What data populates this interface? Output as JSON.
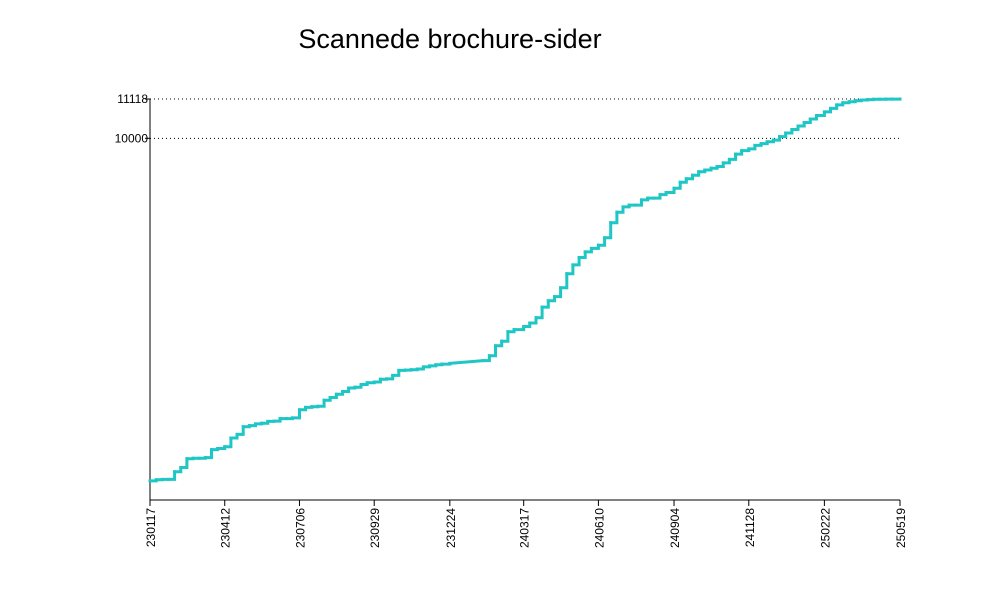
{
  "chart_data": {
    "type": "line",
    "title": "Scannede brochure-sider",
    "xlabel": "",
    "ylabel": "",
    "x_tick_labels": [
      "230117",
      "230412",
      "230706",
      "230929",
      "231224",
      "240317",
      "240610",
      "240904",
      "241128",
      "250222",
      "250519"
    ],
    "y_tick_labels": [
      "11118",
      "10000"
    ],
    "y_ticks": [
      11118,
      10000
    ],
    "ylim": [
      0,
      11118
    ],
    "grid": "dotted horizontal lines at the labeled y ticks",
    "legend": "none",
    "line_color": "#1fc6c6",
    "series": [
      {
        "x": [
          "230117",
          "230124",
          "230131",
          "230207",
          "230214",
          "230221",
          "230228",
          "230307",
          "230314",
          "230321",
          "230328",
          "230404",
          "230412",
          "230419",
          "230426",
          "230503",
          "230510",
          "230517",
          "230524",
          "230531",
          "230607",
          "230614",
          "230621",
          "230628",
          "230706",
          "230713",
          "230720",
          "230727",
          "230803",
          "230810",
          "230817",
          "230824",
          "230831",
          "230907",
          "230914",
          "230921",
          "230929",
          "231006",
          "231013",
          "231020",
          "231027",
          "231103",
          "231110",
          "231117",
          "231124",
          "231201",
          "231208",
          "231215",
          "231224",
          "240131",
          "240207",
          "240214",
          "240221",
          "240228",
          "240306",
          "240317",
          "240324",
          "240331",
          "240407",
          "240414",
          "240421",
          "240428",
          "240505",
          "240512",
          "240519",
          "240526",
          "240602",
          "240610",
          "240617",
          "240624",
          "240701",
          "240708",
          "240715",
          "240722",
          "240729",
          "240805",
          "240812",
          "240819",
          "240826",
          "240904",
          "240911",
          "240918",
          "240925",
          "241002",
          "241009",
          "241016",
          "241023",
          "241030",
          "241106",
          "241113",
          "241120",
          "241128",
          "241205",
          "241212",
          "241219",
          "241226",
          "250102",
          "250109",
          "250116",
          "250123",
          "250130",
          "250206",
          "250213",
          "250222",
          "250301",
          "250308",
          "250315",
          "250322",
          "250329",
          "250405",
          "250412",
          "250419",
          "250426",
          "250503",
          "250510",
          "250519"
        ],
        "y": [
          260,
          290,
          300,
          300,
          520,
          640,
          890,
          900,
          900,
          920,
          1150,
          1180,
          1230,
          1480,
          1580,
          1800,
          1830,
          1880,
          1900,
          1950,
          1960,
          2030,
          2030,
          2050,
          2280,
          2350,
          2370,
          2380,
          2550,
          2630,
          2720,
          2800,
          2900,
          2920,
          3000,
          3050,
          3070,
          3150,
          3160,
          3260,
          3400,
          3410,
          3420,
          3440,
          3500,
          3530,
          3560,
          3580,
          3600,
          3680,
          3820,
          4100,
          4230,
          4500,
          4560,
          4650,
          4750,
          4900,
          5200,
          5380,
          5500,
          5750,
          6150,
          6400,
          6610,
          6770,
          6870,
          6960,
          7170,
          7600,
          7900,
          8050,
          8100,
          8100,
          8250,
          8300,
          8300,
          8400,
          8460,
          8580,
          8750,
          8850,
          8950,
          9050,
          9100,
          9150,
          9200,
          9300,
          9400,
          9550,
          9650,
          9700,
          9800,
          9850,
          9900,
          9950,
          10050,
          10150,
          10250,
          10350,
          10450,
          10550,
          10650,
          10750,
          10850,
          10950,
          11010,
          11040,
          11070,
          11090,
          11100,
          11110,
          11113,
          11115,
          11116,
          11118
        ]
      }
    ]
  }
}
